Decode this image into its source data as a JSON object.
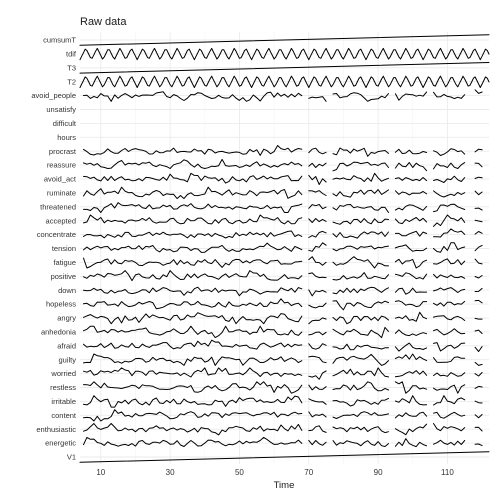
{
  "chart_data": {
    "type": "line",
    "title": "Raw data",
    "xlabel": "Time",
    "ylabel": "",
    "xlim": [
      4,
      122
    ],
    "x_ticks": [
      10,
      30,
      50,
      70,
      90,
      110
    ],
    "grid": true,
    "legend": "none",
    "series_order_top_to_bottom": [
      "cumsumT",
      "tdif",
      "T3",
      "T2",
      "avoid_people",
      "unsatisfy",
      "difficult",
      "hours",
      "procrast",
      "reassure",
      "avoid_act",
      "ruminate",
      "threatened",
      "accepted",
      "concentrate",
      "tension",
      "fatigue",
      "positive",
      "down",
      "hopeless",
      "angry",
      "anhedonia",
      "afraid",
      "guilty",
      "worried",
      "restless",
      "irritable",
      "content",
      "enthusiastic",
      "energetic",
      "V1"
    ],
    "series_shapes": {
      "cumsumT": "increasing",
      "V1": "increasing",
      "T3": "increasing",
      "tdif": "periodic",
      "T2": "periodic",
      "unsatisfy": "empty",
      "difficult": "empty",
      "hours": "empty",
      "avoid_people": "noisy",
      "default": "noisy"
    },
    "data_gaps": [
      [
        68,
        70
      ],
      [
        75,
        77
      ],
      [
        93,
        95
      ],
      [
        104,
        106
      ],
      [
        115,
        118
      ]
    ]
  }
}
